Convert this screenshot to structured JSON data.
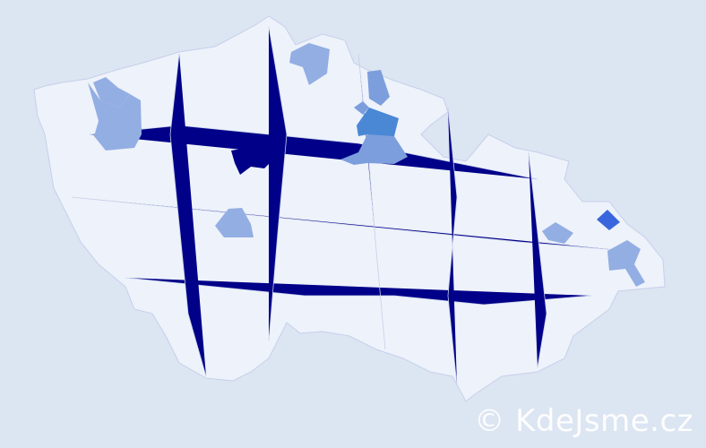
{
  "map": {
    "colors": {
      "background": "#dce5f2",
      "land": "#eef2fa",
      "border": "#c6d0ea",
      "level_max": "#000088",
      "level_high": "#3a66dd",
      "level_mid": "#4a88d6",
      "level_low": "#7d9edc",
      "level_min": "#93aee3"
    },
    "highlighted_regions": [
      {
        "level": "level_max"
      },
      {
        "level": "level_max"
      },
      {
        "level": "level_high"
      },
      {
        "level": "level_mid"
      },
      {
        "level": "level_min"
      },
      {
        "level": "level_min"
      },
      {
        "level": "level_min"
      },
      {
        "level": "level_low"
      },
      {
        "level": "level_low"
      },
      {
        "level": "level_low"
      },
      {
        "level": "level_min"
      }
    ]
  },
  "watermark": {
    "text": "© KdeJsme.cz"
  }
}
